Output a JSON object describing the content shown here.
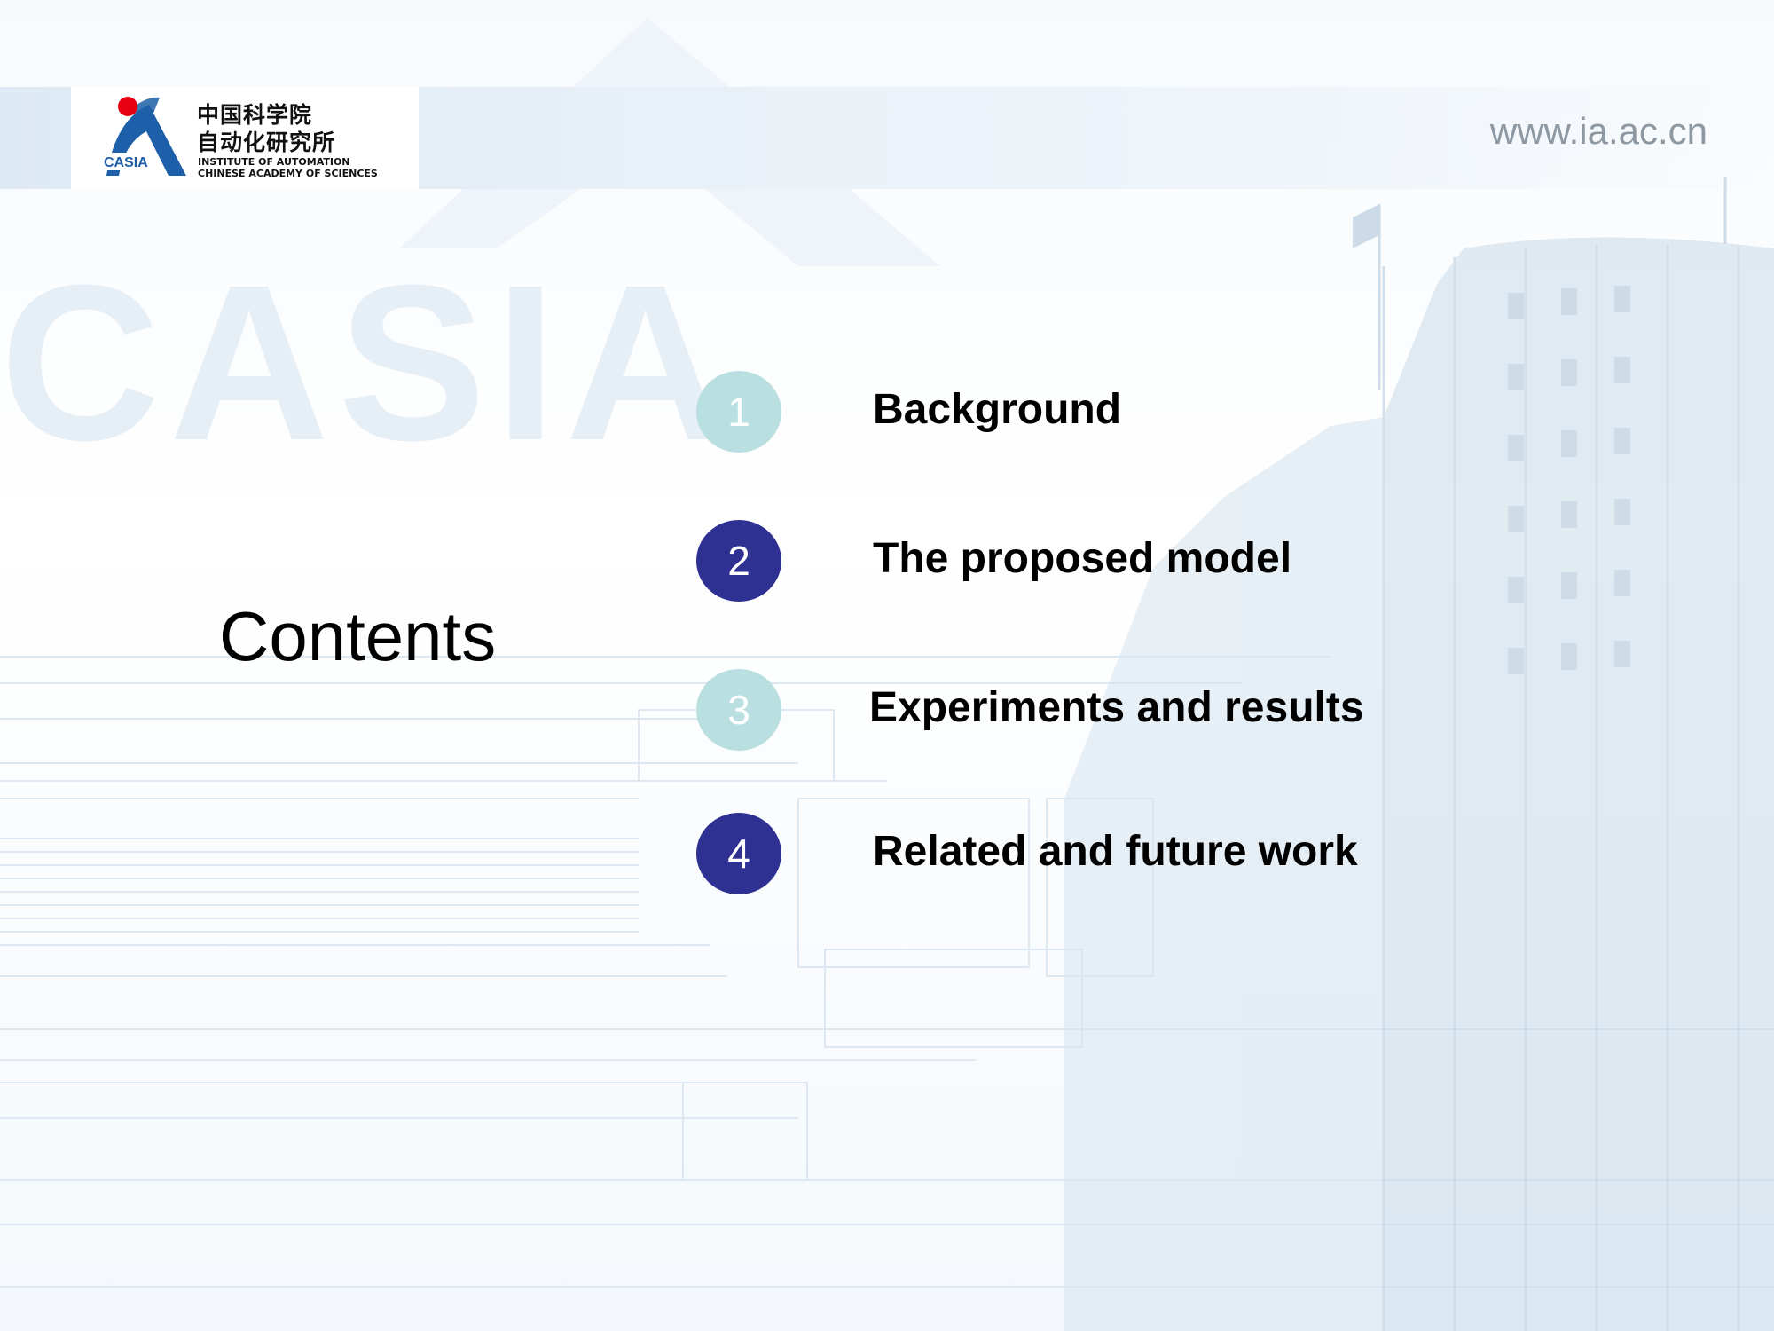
{
  "header": {
    "logo_badge": "CASIA",
    "logo_cn": "中国科学院\n自动化研究所",
    "logo_en": "INSTITUTE OF AUTOMATION\nCHINESE ACADEMY OF SCIENCES",
    "website": "www.ia.ac.cn",
    "watermark": "CASIA"
  },
  "title": "Contents",
  "items": [
    {
      "number": "1",
      "label": "Background",
      "color": "#b9dfe0"
    },
    {
      "number": "2",
      "label": "The proposed model",
      "color": "#2e3192"
    },
    {
      "number": "3",
      "label": "Experiments and results",
      "color": "#b9dfe0"
    },
    {
      "number": "4",
      "label": "Related and future work",
      "color": "#2e3192"
    }
  ],
  "colors": {
    "accent_dark": "#2e3192",
    "accent_light": "#b9dfe0",
    "logo_red": "#e60012",
    "logo_blue": "#1d5fa8"
  }
}
